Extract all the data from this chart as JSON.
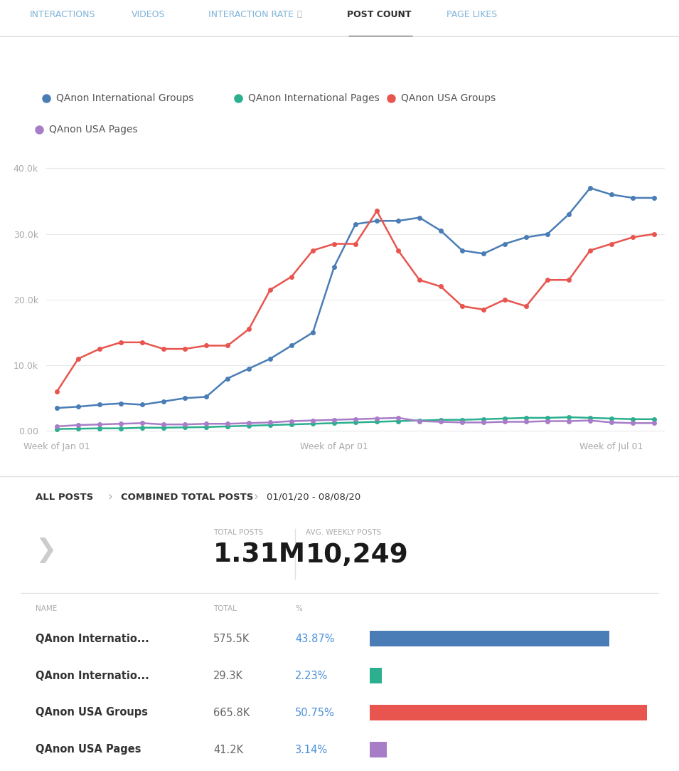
{
  "tab_labels": [
    "INTERACTIONS",
    "VIDEOS",
    "INTERACTION RATE",
    "POST COUNT",
    "PAGE LIKES"
  ],
  "active_tab": "POST COUNT",
  "legend": [
    {
      "label": "QAnon International Groups",
      "color": "#4a7db5"
    },
    {
      "label": "QAnon International Pages",
      "color": "#2baf8e"
    },
    {
      "label": "QAnon USA Groups",
      "color": "#e8554e"
    },
    {
      "label": "QAnon USA Pages",
      "color": "#a87dc8"
    }
  ],
  "x_labels": [
    "Week of Jan 01",
    "Week of Apr 01",
    "Week of Jul 01"
  ],
  "y_ticks": [
    0,
    10000,
    20000,
    30000,
    40000
  ],
  "y_tick_labels": [
    "0.00",
    "10.0k",
    "20.0k",
    "30.0k",
    "40.0k"
  ],
  "series": {
    "intl_groups": [
      3500,
      3700,
      4000,
      4200,
      4000,
      4500,
      5000,
      5200,
      8000,
      9500,
      11000,
      13000,
      15000,
      25000,
      31500,
      32000,
      32000,
      32500,
      30500,
      27500,
      27000,
      28500,
      29500,
      30000,
      33000,
      37000,
      36000,
      35500,
      35500
    ],
    "intl_pages": [
      300,
      350,
      400,
      400,
      500,
      500,
      550,
      600,
      700,
      800,
      900,
      1000,
      1100,
      1200,
      1300,
      1400,
      1500,
      1600,
      1700,
      1700,
      1800,
      1900,
      2000,
      2000,
      2100,
      2000,
      1900,
      1800,
      1800
    ],
    "usa_groups": [
      6000,
      11000,
      12500,
      13500,
      13500,
      12500,
      12500,
      13000,
      13000,
      15500,
      21500,
      23500,
      27500,
      28500,
      28500,
      33500,
      27500,
      23000,
      22000,
      19000,
      18500,
      20000,
      19000,
      23000,
      23000,
      27500,
      28500,
      29500,
      30000
    ],
    "usa_pages": [
      700,
      900,
      1000,
      1100,
      1200,
      1000,
      1000,
      1100,
      1100,
      1200,
      1300,
      1500,
      1600,
      1700,
      1800,
      1900,
      2000,
      1500,
      1400,
      1300,
      1300,
      1400,
      1400,
      1500,
      1500,
      1600,
      1300,
      1200,
      1200
    ]
  },
  "n_points": 29,
  "breadcrumb_all": "ALL POSTS",
  "breadcrumb_combined": "COMBINED TOTAL POSTS",
  "breadcrumb_date": "01/01/20 - 08/08/20",
  "total_posts_label": "TOTAL POSTS",
  "total_posts_value": "1.31M",
  "avg_weekly_label": "AVG. WEEKLY POSTS",
  "avg_weekly_value": "10,249",
  "table_headers": [
    "NAME",
    "TOTAL",
    "%"
  ],
  "table_rows": [
    {
      "name": "QAnon Internatio...",
      "total": "575.5K",
      "pct": "43.87%",
      "color": "#4a7db5",
      "bar_pct": 0.8638
    },
    {
      "name": "QAnon Internatio...",
      "total": "29.3K",
      "pct": "2.23%",
      "color": "#2baf8e",
      "bar_pct": 0.044
    },
    {
      "name": "QAnon USA Groups",
      "total": "665.8K",
      "pct": "50.75%",
      "color": "#e8554e",
      "bar_pct": 1.0
    },
    {
      "name": "QAnon USA Pages",
      "total": "41.2K",
      "pct": "3.14%",
      "color": "#a87dc8",
      "bar_pct": 0.062
    }
  ],
  "bg_color": "#ffffff",
  "grid_color": "#e8e8e8",
  "axis_label_color": "#aaaaaa",
  "tab_active_color": "#2d2d2d",
  "tab_inactive_color": "#7eb3d8",
  "breadcrumb_bold_color": "#333333",
  "breadcrumb_date_color": "#333333",
  "breadcrumb_arrow_color": "#aaaaaa",
  "stats_label_color": "#aaaaaa",
  "stats_value_color": "#1a1a1a",
  "table_name_color": "#333333",
  "table_total_color": "#666666",
  "table_pct_color": "#4a90d9",
  "divider_color": "#e0e0e0",
  "chevron_color": "#cccccc"
}
